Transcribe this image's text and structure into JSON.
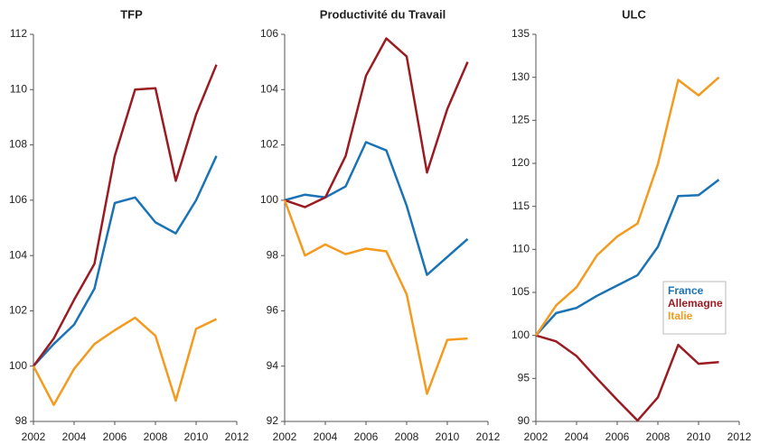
{
  "chart_data": [
    {
      "type": "line",
      "title": "TFP",
      "x": [
        2002,
        2003,
        2004,
        2005,
        2006,
        2007,
        2008,
        2009,
        2010,
        2011
      ],
      "xlim": [
        2002,
        2012
      ],
      "xticks": [
        2002,
        2004,
        2006,
        2008,
        2010,
        2012
      ],
      "ylim": [
        98,
        112
      ],
      "yticks": [
        98,
        100,
        102,
        104,
        106,
        108,
        110,
        112
      ],
      "series": [
        {
          "color": "#1a73b5",
          "values": [
            100,
            100.8,
            101.5,
            102.8,
            105.9,
            106.1,
            105.2,
            104.8,
            106.0,
            107.6
          ]
        },
        {
          "color": "#9b1b22",
          "values": [
            100,
            101.0,
            102.4,
            103.7,
            107.6,
            110.0,
            110.05,
            106.7,
            109.1,
            110.9
          ]
        },
        {
          "color": "#f39a1f",
          "values": [
            100,
            98.6,
            99.9,
            100.8,
            101.3,
            101.75,
            101.1,
            98.75,
            101.35,
            101.7
          ]
        }
      ]
    },
    {
      "type": "line",
      "title": "Productivité du Travail",
      "x": [
        2002,
        2003,
        2004,
        2005,
        2006,
        2007,
        2008,
        2009,
        2010,
        2011
      ],
      "xlim": [
        2002,
        2012
      ],
      "xticks": [
        2002,
        2004,
        2006,
        2008,
        2010,
        2012
      ],
      "ylim": [
        92,
        106
      ],
      "yticks": [
        92,
        94,
        96,
        98,
        100,
        102,
        104,
        106
      ],
      "series": [
        {
          "color": "#1a73b5",
          "values": [
            100,
            100.2,
            100.1,
            100.5,
            102.1,
            101.8,
            99.8,
            97.3,
            97.95,
            98.6
          ]
        },
        {
          "color": "#9b1b22",
          "values": [
            100,
            99.75,
            100.1,
            101.6,
            104.5,
            105.85,
            105.2,
            101.0,
            103.3,
            105.0
          ]
        },
        {
          "color": "#f39a1f",
          "values": [
            100,
            98.0,
            98.4,
            98.05,
            98.25,
            98.15,
            96.6,
            93.0,
            94.95,
            95.0
          ]
        }
      ]
    },
    {
      "type": "line",
      "title": "ULC",
      "x": [
        2002,
        2003,
        2004,
        2005,
        2006,
        2007,
        2008,
        2009,
        2010,
        2011
      ],
      "xlim": [
        2002,
        2012
      ],
      "xticks": [
        2002,
        2004,
        2006,
        2008,
        2010,
        2012
      ],
      "ylim": [
        90,
        135
      ],
      "yticks": [
        90,
        95,
        100,
        105,
        110,
        115,
        120,
        125,
        130,
        135
      ],
      "legend": "lower right",
      "series": [
        {
          "name": "France",
          "color": "#1a73b5",
          "values": [
            100,
            102.6,
            103.2,
            104.6,
            105.8,
            107.0,
            110.3,
            116.2,
            116.3,
            118.1
          ]
        },
        {
          "name": "Allemagne",
          "color": "#9b1b22",
          "values": [
            100,
            99.3,
            97.6,
            95.0,
            92.5,
            90.1,
            92.8,
            98.9,
            96.7,
            96.9
          ]
        },
        {
          "name": "Italie",
          "color": "#f39a1f",
          "values": [
            100,
            103.5,
            105.6,
            109.3,
            111.5,
            113.0,
            119.9,
            129.7,
            127.9,
            130.0
          ]
        }
      ]
    }
  ]
}
